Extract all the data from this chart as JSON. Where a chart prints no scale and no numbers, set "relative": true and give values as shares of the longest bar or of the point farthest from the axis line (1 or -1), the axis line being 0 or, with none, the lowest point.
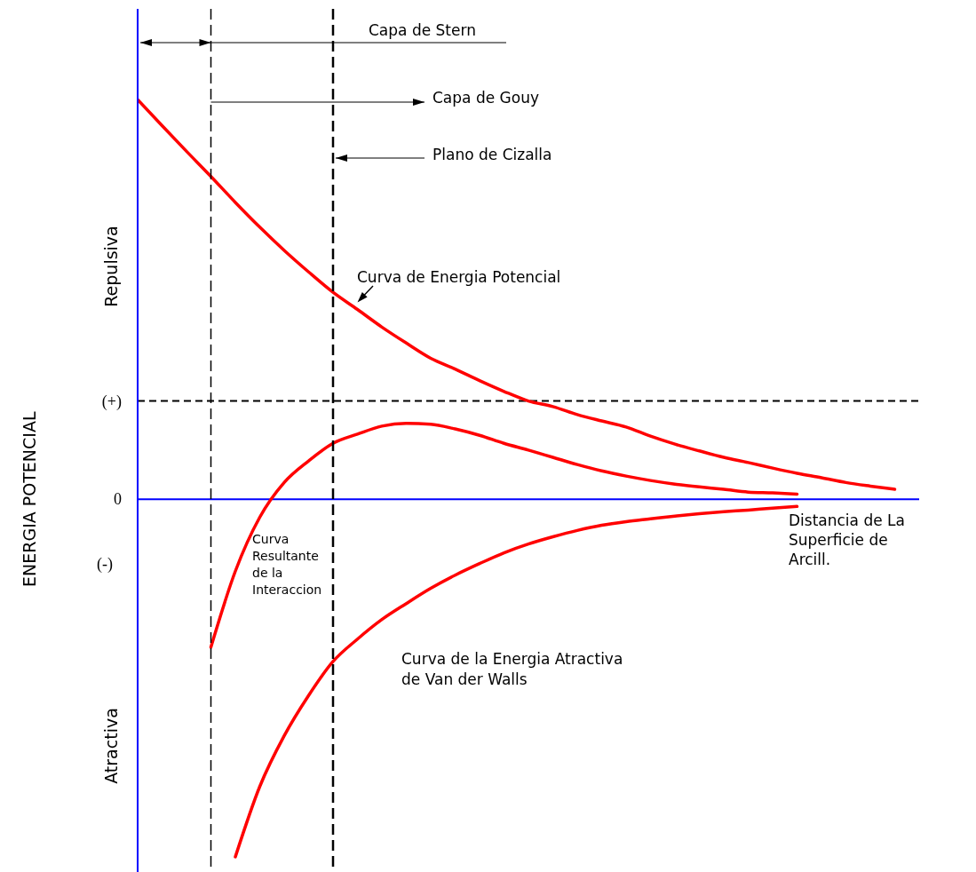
{
  "chart_data": {
    "type": "line",
    "relative": true,
    "xlabel": "Distancia de La Superficie de Arcill.",
    "categories": [
      null,
      null,
      null,
      null,
      null,
      null,
      null,
      null,
      null,
      null,
      null,
      null,
      null,
      null,
      null,
      null,
      null,
      null,
      null,
      null,
      null,
      null,
      null,
      null,
      null,
      null,
      null,
      null,
      null,
      null,
      null,
      null,
      null
    ],
    "series": [
      {
        "name": "Curva de Energia Potencial",
        "color": "#ff0000",
        "values": [
          1.0,
          0.935,
          0.871,
          0.808,
          0.743,
          0.681,
          0.623,
          0.569,
          0.518,
          0.475,
          0.431,
          0.391,
          0.353,
          0.326,
          0.297,
          0.27,
          0.246,
          0.232,
          0.212,
          0.196,
          0.181,
          0.158,
          0.138,
          0.121,
          0.105,
          0.092,
          0.078,
          0.065,
          0.054,
          0.042,
          0.033,
          0.025,
          null
        ]
      },
      {
        "name": "Curva Resultante de la Interaccion",
        "color": "#ff0000",
        "values": [
          null,
          null,
          null,
          -0.37,
          -0.18,
          -0.045,
          0.042,
          0.096,
          0.14,
          0.163,
          0.183,
          0.19,
          0.188,
          0.176,
          0.16,
          0.14,
          0.123,
          0.105,
          0.087,
          0.071,
          0.058,
          0.047,
          0.038,
          0.031,
          0.025,
          0.018,
          0.016,
          0.013,
          null,
          null,
          null,
          null,
          null
        ]
      },
      {
        "name": "Curva de la Energia Atractiva de Van der Walls",
        "color": "#ff0000",
        "values": [
          null,
          null,
          null,
          null,
          -0.895,
          -0.719,
          -0.592,
          -0.491,
          -0.406,
          -0.35,
          -0.301,
          -0.261,
          -0.223,
          -0.19,
          -0.161,
          -0.134,
          -0.112,
          -0.094,
          -0.078,
          -0.065,
          -0.056,
          -0.049,
          -0.042,
          -0.036,
          -0.031,
          -0.027,
          -0.022,
          -0.018,
          null,
          null,
          null,
          null,
          null
        ]
      }
    ],
    "ref_lines": [
      {
        "axis": "y",
        "value": 0.246,
        "label": "(+)",
        "color": "#000000",
        "line_style": "dashed"
      },
      {
        "axis": "y",
        "value": 0,
        "label": "0",
        "color": "#0000ff",
        "line_style": "solid"
      }
    ],
    "annotations": [
      "Capa de Stern",
      "Capa de Gouy",
      "Repulsiva",
      "(-)",
      "Atractiva",
      "ENERGIA POTENCIAL",
      "Plano de Cizalla"
    ]
  }
}
